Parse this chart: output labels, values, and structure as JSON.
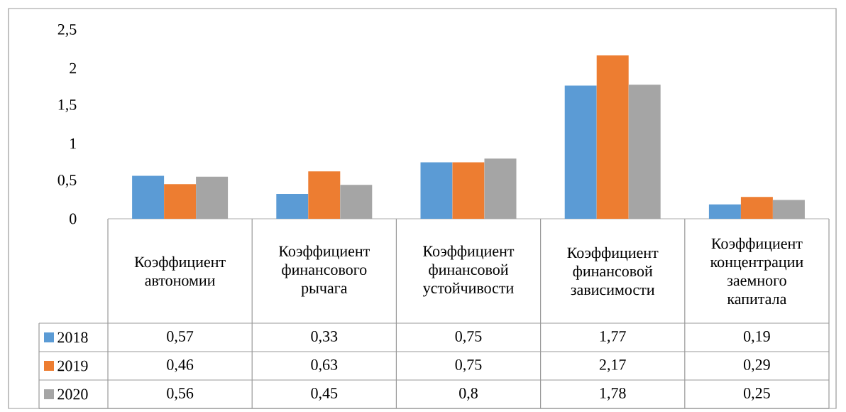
{
  "chart_data": {
    "type": "bar",
    "categories": [
      "Коэффициент автономии",
      "Коэффициент финансового рычага",
      "Коэффициент финансовой устойчивости",
      "Коэффициент финансовой зависимости",
      "Коэффициент концентрации заемного капитала"
    ],
    "series": [
      {
        "name": "2018",
        "color": "#5b9bd5",
        "values": [
          0.57,
          0.33,
          0.75,
          1.77,
          0.19
        ],
        "value_labels": [
          "0,57",
          "0,33",
          "0,75",
          "1,77",
          "0,19"
        ]
      },
      {
        "name": "2019",
        "color": "#ed7d31",
        "values": [
          0.46,
          0.63,
          0.75,
          2.17,
          0.29
        ],
        "value_labels": [
          "0,46",
          "0,63",
          "0,75",
          "2,17",
          "0,29"
        ]
      },
      {
        "name": "2020",
        "color": "#a5a5a5",
        "values": [
          0.56,
          0.45,
          0.8,
          1.78,
          0.25
        ],
        "value_labels": [
          "0,56",
          "0,45",
          "0,8",
          "1,78",
          "0,25"
        ]
      }
    ],
    "ylim": [
      0,
      2.5
    ],
    "yticks": [
      0,
      {
        "value": 0.5,
        "label": "0,5"
      },
      1,
      {
        "value": 1.5,
        "label": "1,5"
      },
      2,
      {
        "value": 2.5,
        "label": "2,5"
      }
    ],
    "legend": "bottom left"
  }
}
